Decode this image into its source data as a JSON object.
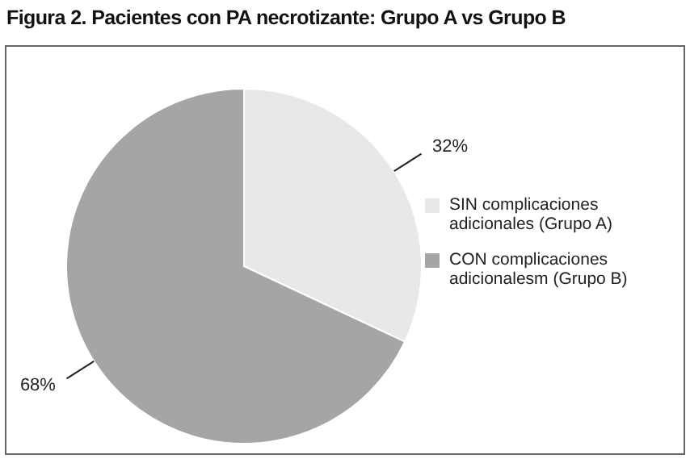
{
  "chart_data": {
    "type": "pie",
    "title": "Figura 2. Pacientes con PA necrotizante: Grupo A vs Grupo B",
    "categories": [
      "SIN complicaciones adicionales (Grupo A)",
      "CON complicaciones adicionalesm (Grupo B)"
    ],
    "values": [
      32,
      68
    ],
    "colors": [
      "#e8e8e8",
      "#a5a5a5"
    ],
    "value_labels": [
      "32%",
      "68%"
    ],
    "legend": "right"
  }
}
